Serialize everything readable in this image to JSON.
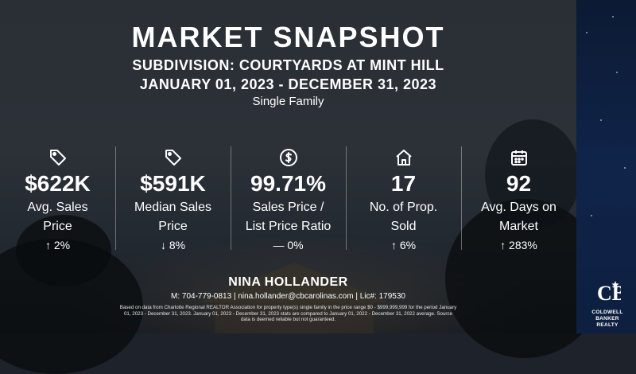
{
  "header": {
    "title": "MARKET SNAPSHOT",
    "subdivision": "SUBDIVISION: COURTYARDS AT MINT HILL",
    "date_range": "JANUARY 01, 2023 - DECEMBER 31, 2023",
    "property_type": "Single Family"
  },
  "stats": [
    {
      "icon": "price-tag-icon",
      "value": "$622K",
      "label_line1": "Avg. Sales",
      "label_line2": "Price",
      "change": "↑ 2%"
    },
    {
      "icon": "price-tag-icon",
      "value": "$591K",
      "label_line1": "Median Sales",
      "label_line2": "Price",
      "change": "↓ 8%"
    },
    {
      "icon": "dollar-circle-icon",
      "value": "99.71%",
      "label_line1": "Sales Price /",
      "label_line2": "List Price Ratio",
      "change": "— 0%"
    },
    {
      "icon": "home-icon",
      "value": "17",
      "label_line1": "No. of Prop.",
      "label_line2": "Sold",
      "change": "↑ 6%"
    },
    {
      "icon": "calendar-icon",
      "value": "92",
      "label_line1": "Avg. Days on",
      "label_line2": "Market",
      "change": "↑ 283%"
    }
  ],
  "agent": {
    "name": "NINA HOLLANDER",
    "contact": "M: 704-779-0813 | nina.hollander@cbcarolinas.com | Lic#: 179530"
  },
  "disclaimer": "Based on data from Charlotte Regional REALTOR Association for property type(s) single family in the price range $0 - $999,999,999 for the period January 01, 2023 - December 31, 2023. January 01, 2023 - December 31, 2023 stats are compared to January 01, 2022 - December 31, 2022 average. Source data is deemed reliable but not guaranteed.",
  "brand": {
    "line1": "COLDWELL",
    "line2": "BANKER",
    "line3": "REALTY"
  },
  "colors": {
    "sidebar": "#10244a",
    "text": "#ffffff"
  }
}
